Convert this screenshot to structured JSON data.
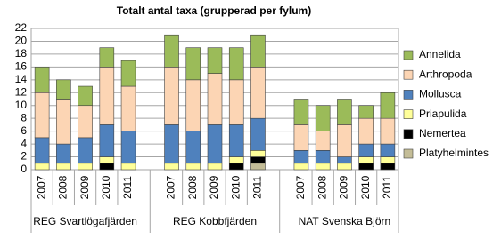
{
  "chart_data": {
    "type": "stacked-bar",
    "title": "Totalt antal taxa (grupperad per fylum)",
    "groups": [
      {
        "name": "REG Svartlögafjärden",
        "categories": [
          "2007",
          "2008",
          "2009",
          "2010",
          "2011"
        ]
      },
      {
        "name": "REG Kobbfjärden",
        "categories": [
          "2007",
          "2008",
          "2009",
          "2010",
          "2011"
        ]
      },
      {
        "name": "NAT Svenska Björn",
        "categories": [
          "2007",
          "2008",
          "2009",
          "2010",
          "2011"
        ]
      }
    ],
    "series": [
      {
        "name": "Platyhelmintes",
        "color": "#c4bd97",
        "values": [
          0,
          0,
          0,
          0,
          0,
          0,
          0,
          0,
          0,
          1,
          0,
          0,
          0,
          0,
          0
        ]
      },
      {
        "name": "Nemertea",
        "color": "#000000",
        "values": [
          0,
          0,
          0,
          1,
          0,
          0,
          0,
          0,
          1,
          1,
          0,
          0,
          0,
          1,
          1
        ]
      },
      {
        "name": "Priapulida",
        "color": "#ffff99",
        "values": [
          1,
          1,
          1,
          1,
          1,
          1,
          1,
          1,
          1,
          1,
          1,
          1,
          1,
          1,
          1
        ]
      },
      {
        "name": "Mollusca",
        "color": "#4f81bd",
        "values": [
          4,
          3,
          4,
          5,
          5,
          6,
          5,
          6,
          5,
          5,
          2,
          2,
          1,
          2,
          2
        ]
      },
      {
        "name": "Arthropoda",
        "color": "#fcd5b4",
        "values": [
          7,
          7,
          5,
          9,
          7,
          9,
          8,
          8,
          7,
          8,
          4,
          3,
          5,
          4,
          4
        ]
      },
      {
        "name": "Annelida",
        "color": "#9bbb59",
        "values": [
          4,
          3,
          3,
          3,
          4,
          5,
          5,
          4,
          5,
          5,
          4,
          4,
          4,
          2,
          4
        ]
      }
    ],
    "ylim": [
      0,
      22
    ],
    "yticks": [
      0,
      2,
      4,
      6,
      8,
      10,
      12,
      14,
      16,
      18,
      20,
      22
    ],
    "grid": true
  }
}
